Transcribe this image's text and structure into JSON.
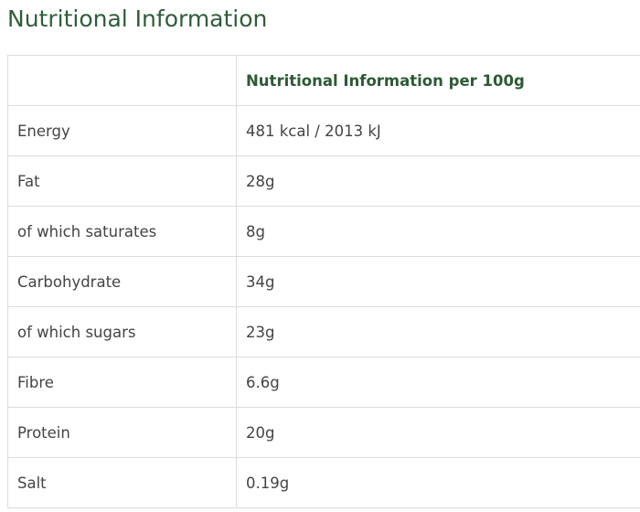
{
  "header": {
    "title": "Nutritional Information"
  },
  "table": {
    "column_header": "Nutritional Information per 100g",
    "rows": [
      [
        "Energy",
        "481 kcal / 2013 kJ"
      ],
      [
        "Fat",
        "28g"
      ],
      [
        "of which saturates",
        "8g"
      ],
      [
        "Carbohydrate",
        "34g"
      ],
      [
        "of which sugars",
        "23g"
      ],
      [
        "Fibre",
        "6.6g"
      ],
      [
        "Protein",
        "20g"
      ],
      [
        "Salt",
        "0.19g"
      ]
    ]
  }
}
